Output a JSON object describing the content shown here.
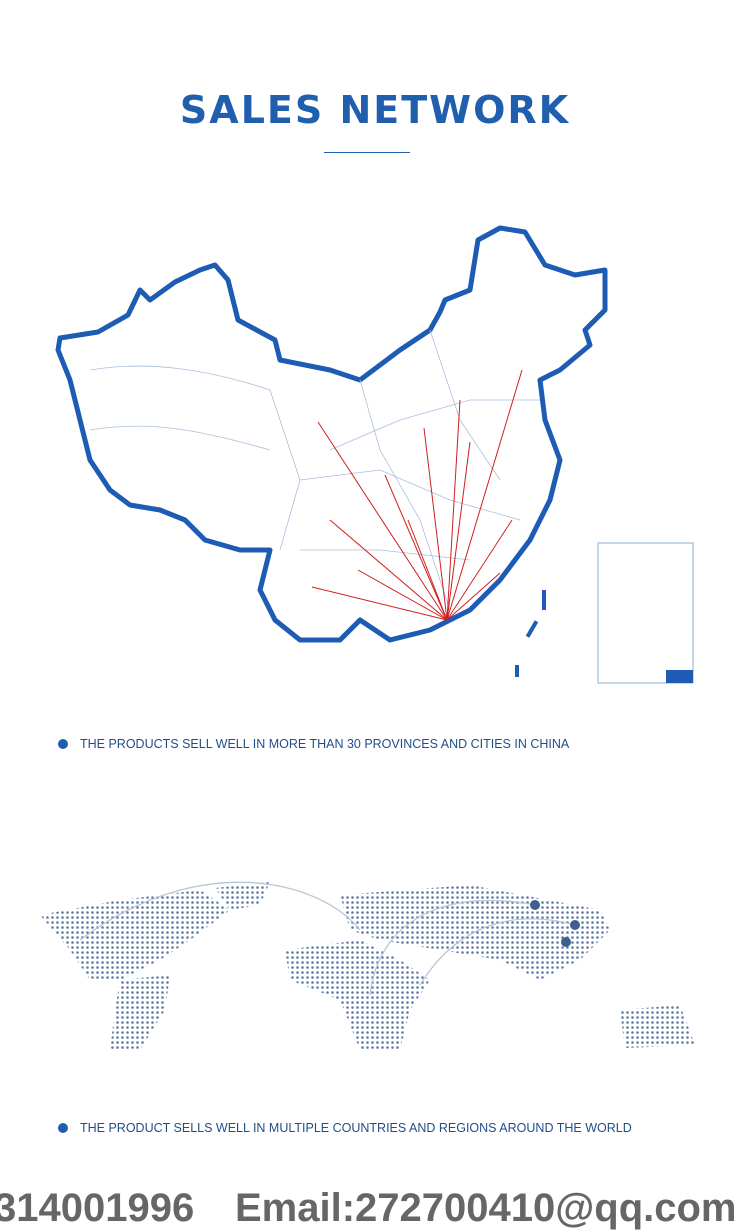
{
  "header": {
    "title": "SALES NETWORK"
  },
  "china_section": {
    "caption": "THE PRODUCTS SELL WELL IN MORE THAN 30 PROVINCES AND CITIES IN CHINA"
  },
  "world_section": {
    "caption": "THE PRODUCT SELLS WELL IN MULTIPLE COUNTRIES AND REGIONS AROUND THE WORLD"
  },
  "footer": {
    "phone": "314001996",
    "email": "Email:272700410@qq.com"
  }
}
